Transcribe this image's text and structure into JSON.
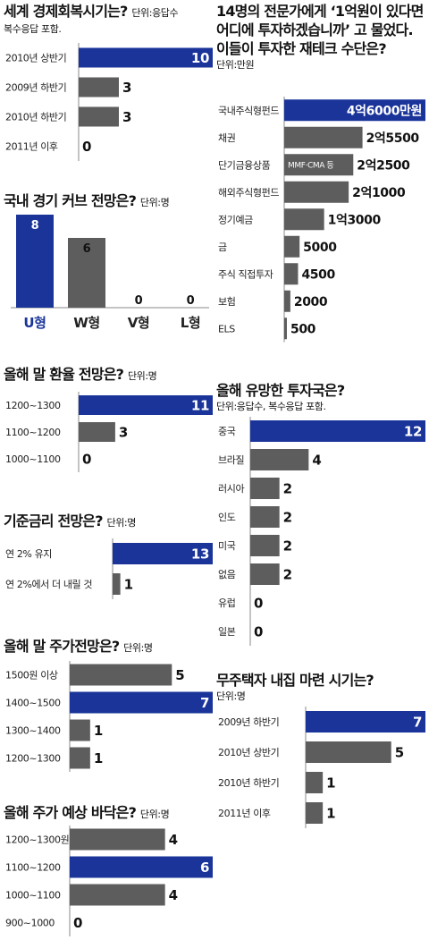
{
  "colors": {
    "highlight": "#1a3499",
    "bar": "#5d5d5d",
    "axis": "#888888"
  },
  "charts": [
    {
      "id": "recovery",
      "title": "세계 경제회복시기는?",
      "unit": "단위:응답수",
      "unit_line": "복수응답 포함.",
      "chart_data": {
        "type": "bar",
        "categories": [
          "2010년 상반기",
          "2009년 하반기",
          "2010년 하반기",
          "2011년 이후"
        ],
        "values": [
          10,
          3,
          3,
          0
        ],
        "highlight": 0,
        "value_labels": [
          "10",
          "3",
          "3",
          "0"
        ]
      }
    },
    {
      "id": "curve",
      "title": "국내 경기 커브 전망은?",
      "unit": "단위:명",
      "chart_data": {
        "type": "bar",
        "categories": [
          "U형",
          "W형",
          "V형",
          "L형"
        ],
        "values": [
          8,
          6,
          0,
          0
        ],
        "highlight": 0,
        "value_labels": [
          "8",
          "6",
          "0",
          "0"
        ]
      }
    },
    {
      "id": "fx",
      "title": "올해 말 환율 전망은?",
      "unit": "단위:명",
      "chart_data": {
        "type": "bar",
        "categories": [
          "1200~1300",
          "1100~1200",
          "1000~1100"
        ],
        "values": [
          11,
          3,
          0
        ],
        "highlight": 0,
        "value_labels": [
          "11",
          "3",
          "0"
        ]
      }
    },
    {
      "id": "rate",
      "title": "기준금리 전망은?",
      "unit": "단위:명",
      "chart_data": {
        "type": "bar",
        "categories": [
          "연 2% 유지",
          "연 2%에서 더 내릴 것"
        ],
        "values": [
          13,
          1
        ],
        "highlight": 0,
        "value_labels": [
          "13",
          "1"
        ]
      }
    },
    {
      "id": "stock",
      "title": "올해 말 주가전망은?",
      "unit": "단위:명",
      "chart_data": {
        "type": "bar",
        "categories": [
          "1500원 이상",
          "1400~1500",
          "1300~1400",
          "1200~1300"
        ],
        "values": [
          5,
          7,
          1,
          1
        ],
        "highlight": 1,
        "value_labels": [
          "5",
          "7",
          "1",
          "1"
        ]
      }
    },
    {
      "id": "bottom",
      "title": "올해 주가 예상 바닥은?",
      "unit": "단위:명",
      "chart_data": {
        "type": "bar",
        "categories": [
          "1200~1300원",
          "1100~1200",
          "1000~1100",
          "900~1000"
        ],
        "values": [
          4,
          6,
          4,
          0
        ],
        "highlight": 1,
        "value_labels": [
          "4",
          "6",
          "4",
          "0"
        ]
      }
    },
    {
      "id": "invest",
      "title_lines": [
        "14명의 전문가에게 ‘1억원이 있다면",
        "어디에 투자하겠습니까’ 고 물었다.",
        "이들이 투자한 재테크 수단은?"
      ],
      "unit_line": "단위:만원",
      "chart_data": {
        "type": "bar",
        "categories": [
          "국내주식형펀드",
          "채권",
          "단기금융상품",
          "해외주식형펀드",
          "정기예금",
          "금",
          "주식 직접투자",
          "보험",
          "ELS"
        ],
        "values": [
          46000,
          25500,
          22500,
          21000,
          13000,
          5000,
          4500,
          2000,
          500
        ],
        "highlight": 0,
        "value_labels": [
          "4억6000만원",
          "2억5500",
          "2억2500",
          "2억1000",
          "1억3000",
          "5000",
          "4500",
          "2000",
          "500"
        ],
        "annotation": "MMF·CMA 등"
      }
    },
    {
      "id": "country",
      "title": "올해 유망한 투자국은?",
      "unit_line": "단위:응답수, 복수응답 포함.",
      "chart_data": {
        "type": "bar",
        "categories": [
          "중국",
          "브라질",
          "러시아",
          "인도",
          "미국",
          "없음",
          "유럽",
          "일본"
        ],
        "values": [
          12,
          4,
          2,
          2,
          2,
          2,
          0,
          0
        ],
        "highlight": 0,
        "value_labels": [
          "12",
          "4",
          "2",
          "2",
          "2",
          "2",
          "0",
          "0"
        ]
      }
    },
    {
      "id": "house",
      "title": "무주택자 내집 마련 시기는?",
      "unit_line": "단위:명",
      "chart_data": {
        "type": "bar",
        "categories": [
          "2009년 하반기",
          "2010년 상반기",
          "2010년 하반기",
          "2011년 이후"
        ],
        "values": [
          7,
          5,
          1,
          1
        ],
        "highlight": 0,
        "value_labels": [
          "7",
          "5",
          "1",
          "1"
        ]
      }
    }
  ]
}
